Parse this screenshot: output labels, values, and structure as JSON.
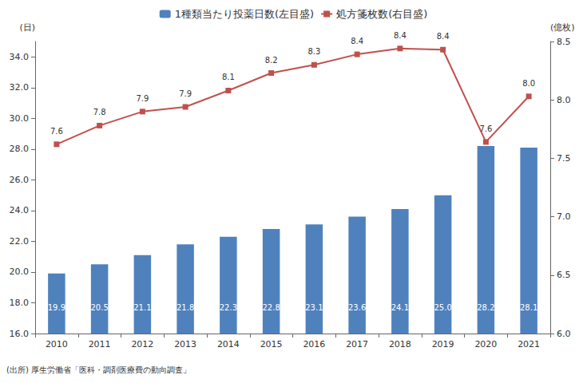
{
  "chart_data": {
    "type": "bar",
    "categories": [
      "2010",
      "2011",
      "2012",
      "2013",
      "2014",
      "2015",
      "2016",
      "2017",
      "2018",
      "2019",
      "2020",
      "2021"
    ],
    "series": [
      {
        "name": "1種類当たり投薬日数(左目盛)",
        "type": "bar",
        "color": "#4f81bd",
        "values": [
          19.9,
          20.5,
          21.1,
          21.8,
          22.3,
          22.8,
          23.1,
          23.6,
          24.1,
          25.0,
          28.2,
          28.1
        ],
        "value_labels": [
          "19.9",
          "20.5",
          "21.1",
          "21.8",
          "22.3",
          "22.8",
          "23.1",
          "23.6",
          "24.1",
          "25.0",
          "28.2",
          "28.1"
        ]
      },
      {
        "name": "処方箋枚数(右目盛)",
        "type": "line",
        "axis": "y2",
        "color": "#c0504d",
        "marker": "square",
        "values": [
          7.62,
          7.78,
          7.9,
          7.94,
          8.08,
          8.23,
          8.3,
          8.39,
          8.44,
          8.43,
          7.64,
          8.03
        ],
        "value_labels": [
          "7.6",
          "7.8",
          "7.9",
          "7.9",
          "8.1",
          "8.2",
          "8.3",
          "8.4",
          "8.4",
          "8.4",
          "7.6",
          "8.0"
        ]
      }
    ],
    "ylabel": "(日)",
    "y2label": "(億枚)",
    "ylim": [
      16,
      35
    ],
    "yticks": [
      {
        "value": 16,
        "label": "16.0"
      },
      {
        "value": 18,
        "label": "18.0"
      },
      {
        "value": 20,
        "label": "20.0"
      },
      {
        "value": 22,
        "label": "22.0"
      },
      {
        "value": 24,
        "label": "24.0"
      },
      {
        "value": 26,
        "label": "26.0"
      },
      {
        "value": 28,
        "label": "28.0"
      },
      {
        "value": 30,
        "label": "30.0"
      },
      {
        "value": 32,
        "label": "32.0"
      },
      {
        "value": 34,
        "label": "34.0"
      }
    ],
    "y2lim": [
      6,
      8.5
    ],
    "y2ticks": [
      {
        "value": 6,
        "label": "6.0"
      },
      {
        "value": 6.5,
        "label": "6.5"
      },
      {
        "value": 7,
        "label": "7.0"
      },
      {
        "value": 7.5,
        "label": "7.5"
      },
      {
        "value": 8,
        "label": "8.0"
      },
      {
        "value": 8.5,
        "label": "8.5"
      }
    ],
    "annotation": "(出所) 厚生労働省「医科・調剤医療費の動向調査」",
    "data_labels": true,
    "grid": false,
    "legend": "top"
  }
}
